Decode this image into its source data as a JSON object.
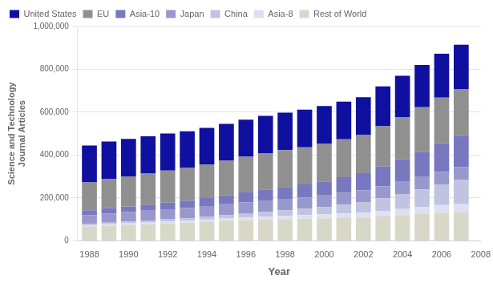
{
  "chart_data": {
    "type": "bar",
    "stacked": true,
    "xlabel": "Year",
    "ylabel": "Science and Technology\nJournal Articles",
    "x": [
      1988,
      1989,
      1990,
      1991,
      1992,
      1993,
      1994,
      1995,
      1996,
      1997,
      1998,
      1999,
      2000,
      2001,
      2002,
      2003,
      2004,
      2005,
      2006,
      2007
    ],
    "series": [
      {
        "name": "Rest of World",
        "color": "#d8d8c8",
        "values": [
          66000,
          70000,
          74000,
          77000,
          81000,
          84000,
          89000,
          93000,
          96000,
          99000,
          101000,
          103000,
          104000,
          106000,
          108000,
          113000,
          119000,
          124000,
          130000,
          133000
        ]
      },
      {
        "name": "Asia-8",
        "color": "#dde0f0",
        "values": [
          6000,
          7000,
          7000,
          8000,
          9000,
          9000,
          10000,
          11000,
          13000,
          14000,
          16000,
          17000,
          19000,
          21000,
          23000,
          26000,
          29000,
          32000,
          36000,
          40000
        ]
      },
      {
        "name": "China",
        "color": "#c0c4e0",
        "values": [
          6000,
          7000,
          8000,
          9000,
          10000,
          12000,
          14000,
          16000,
          19000,
          22000,
          25000,
          29000,
          34000,
          41000,
          49000,
          59000,
          70000,
          83000,
          97000,
          112000
        ]
      },
      {
        "name": "Japan",
        "color": "#9898cc",
        "values": [
          42000,
          43000,
          45000,
          46000,
          47000,
          48000,
          49000,
          50000,
          51000,
          53000,
          53000,
          53000,
          54000,
          55000,
          55000,
          56000,
          57000,
          58000,
          59000,
          59000
        ]
      },
      {
        "name": "Asia-10",
        "color": "#7878c0",
        "values": [
          22000,
          24000,
          26000,
          28000,
          31000,
          34000,
          37000,
          41000,
          46000,
          51000,
          56000,
          61000,
          66000,
          73000,
          80000,
          92000,
          105000,
          118000,
          133000,
          146000
        ]
      },
      {
        "name": "EU",
        "color": "#909090",
        "values": [
          130000,
          136000,
          140000,
          145000,
          149000,
          152000,
          157000,
          162000,
          167000,
          170000,
          172000,
          173000,
          175000,
          177000,
          180000,
          188000,
          197000,
          208000,
          213000,
          218000
        ]
      },
      {
        "name": "United States",
        "color": "#1010a0",
        "values": [
          172000,
          176000,
          175000,
          174000,
          173000,
          172000,
          171000,
          172000,
          173000,
          174000,
          175000,
          176000,
          177000,
          176000,
          175000,
          186000,
          193000,
          197000,
          205000,
          207000
        ]
      }
    ],
    "xlim": [
      1987.4,
      2008.0
    ],
    "xticks": [
      1988,
      1990,
      1992,
      1994,
      1996,
      1998,
      2000,
      2002,
      2004,
      2006,
      2008
    ],
    "ylim": [
      0,
      1000000
    ],
    "yticks": [
      0,
      {
        "value": 200000,
        "label": "200,000"
      },
      {
        "value": 400000,
        "label": "400,000"
      },
      {
        "value": 600000,
        "label": "600,000"
      },
      {
        "value": 800000,
        "label": "800,000"
      },
      {
        "value": 1000000,
        "label": "1,000,000"
      }
    ],
    "grid": true,
    "legend": "upper left"
  }
}
